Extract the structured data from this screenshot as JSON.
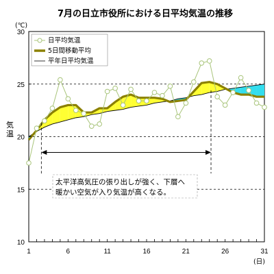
{
  "chart_data": {
    "type": "line",
    "title": "7月の日立市役所における日平均気温の推移",
    "ylabel": "気温",
    "y_unit": "(℃)",
    "x_unit": "(日)",
    "xlim": [
      1,
      31
    ],
    "ylim": [
      10,
      30
    ],
    "x_ticks": [
      1,
      6,
      11,
      16,
      21,
      26,
      31
    ],
    "y_ticks": [
      10,
      15,
      20,
      25,
      30
    ],
    "dashed_gridlines_y": [
      15,
      20,
      25
    ],
    "legend_position": "top-left",
    "x": [
      1,
      2,
      3,
      4,
      5,
      6,
      7,
      8,
      9,
      10,
      11,
      12,
      13,
      14,
      15,
      16,
      17,
      18,
      19,
      20,
      21,
      22,
      23,
      24,
      25,
      26,
      27,
      28,
      29,
      30,
      31
    ],
    "series": [
      {
        "name": "日平均気温",
        "style": "line-markers",
        "color": "#a8c47a",
        "values": [
          17.5,
          20.8,
          21.5,
          22.7,
          25.4,
          23.6,
          22.5,
          22.2,
          21.0,
          21.2,
          24.3,
          24.6,
          23.0,
          24.5,
          23.4,
          23.4,
          24.2,
          23.9,
          24.8,
          21.9,
          23.2,
          25.2,
          27.0,
          27.2,
          23.8,
          23.0,
          24.2,
          25.6,
          24.4,
          23.2,
          22.8
        ]
      },
      {
        "name": "5日間移動平均",
        "style": "thick-line",
        "color": "#8b8000",
        "values": [
          19.7,
          20.6,
          21.6,
          22.3,
          22.8,
          23.0,
          23.0,
          22.3,
          22.3,
          22.7,
          22.7,
          23.3,
          23.8,
          24.0,
          23.7,
          23.7,
          23.7,
          23.6,
          23.3,
          23.4,
          23.5,
          24.3,
          25.1,
          25.2,
          25.0,
          24.6,
          24.2,
          24.0,
          24.0,
          23.8,
          23.8
        ]
      },
      {
        "name": "平年日平均気温",
        "style": "thin-line",
        "color": "#000000",
        "values": [
          20.0,
          20.5,
          20.9,
          21.2,
          21.4,
          21.6,
          21.8,
          21.9,
          22.1,
          22.2,
          22.4,
          22.5,
          22.6,
          22.8,
          22.9,
          23.0,
          23.2,
          23.3,
          23.4,
          23.6,
          23.7,
          23.9,
          24.0,
          24.2,
          24.3,
          24.5,
          24.6,
          24.7,
          24.8,
          24.9,
          25.0
        ]
      }
    ],
    "fill_above_normal_color": "#ffff33",
    "fill_below_normal_color": "#33ddee",
    "annotation": {
      "text_line1": "太平洋高気圧の張り出しが強く、下層へ",
      "text_line2": "暖かい空気が入り気温が高くなる。",
      "range_x": [
        2.6,
        24.2
      ],
      "arrow_y": 18.5
    }
  }
}
